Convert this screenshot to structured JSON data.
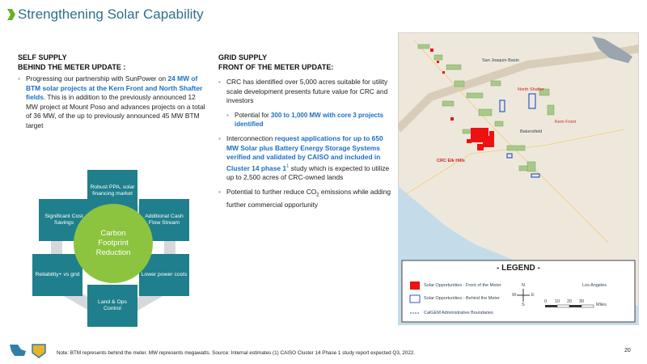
{
  "header": {
    "title": "Strengthening Solar Capability"
  },
  "self_supply": {
    "heading": "SELF SUPPLY",
    "subheading": "BEHIND THE METER UPDATE :",
    "bullets": [
      {
        "level": 1,
        "parts": [
          {
            "text": "Progressing our partnership with SunPower on "
          },
          {
            "text": "24 MW of BTM solar projects at the Kern Front and North Shafter fields",
            "style": "highlight"
          },
          {
            "text": ". This is in addition to the previously announced 12 MW project at Mount Poso and advances projects on a total of 36 MW, of the up to previously announced 45 MW BTM target"
          }
        ]
      }
    ]
  },
  "diagram": {
    "center": "Carbon Footprint Reduction",
    "items": [
      "Robust PPA, solar financing market",
      "Additional Cash Flow Stream",
      "Lower power costs",
      "Land & Ops Control",
      "Reliability+ vs grid",
      "Significant Cost Savings"
    ]
  },
  "grid_supply": {
    "heading": "GRID SUPPLY",
    "subheading": "FRONT OF THE METER UPDATE:",
    "bullets": [
      {
        "level": 1,
        "parts": [
          {
            "text": "CRC has identified over 5,000 acres suitable for utility scale development presents future value for CRC and investors"
          }
        ]
      },
      {
        "level": 2,
        "parts": [
          {
            "text": "Potential for "
          },
          {
            "text": "300 to 1,000 MW with core 3 projects identified",
            "style": "highlight"
          }
        ]
      },
      {
        "level": 1,
        "parts": [
          {
            "text": "Interconnection "
          },
          {
            "text": "request applications for up to 650 MW Solar plus Battery Energy Storage Systems verified and validated by CAISO and included in Cluster 14 phase 1",
            "style": "highlight"
          },
          {
            "text": "1",
            "style": "sup"
          },
          {
            "text": " study which is expected to utilize up to 2,500 acres of CRC-owned lands"
          }
        ]
      },
      {
        "level": 1,
        "parts": [
          {
            "text": "Potential to further reduce CO"
          },
          {
            "text": "2",
            "style": "sub"
          },
          {
            "text": " emissions while adding further commercial opportunity"
          }
        ]
      }
    ]
  },
  "map": {
    "labels": [
      "San Joaquin Basin",
      "North Shafter",
      "Kern Front",
      "Bakersfield",
      "CRC Elk Hills",
      "Los Angeles"
    ],
    "legend": {
      "title": "- LEGEND -",
      "items": [
        "Solar Opportunities - Front of the Meter",
        "Solar Opportunities - Behind the Meter",
        "CalGEM Administrative Boundaries"
      ]
    },
    "compass": [
      "N",
      "W",
      "E",
      "S"
    ],
    "scale": {
      "ticks": [
        "0",
        "10",
        "20",
        "30"
      ],
      "unit": "Miles"
    }
  },
  "footer": {
    "note": "Note: BTM represents behind the meter. MW represents megawatts. Source: Internal estimates (1) CAISO Cluster 14 Phase 1 study report expected Q3, 2022.",
    "page": "20"
  }
}
